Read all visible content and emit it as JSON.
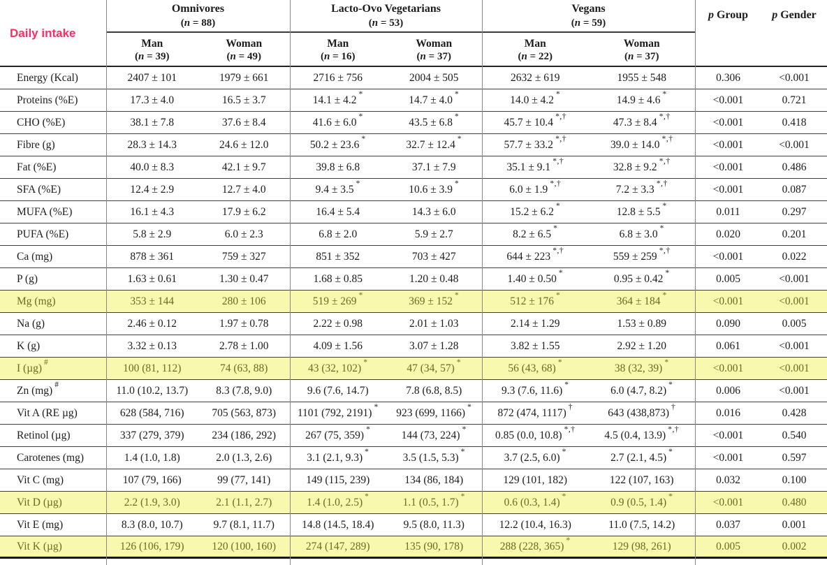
{
  "page": {
    "corner_label": "Daily intake",
    "groups": [
      {
        "name": "Omnivores",
        "n_label": "(n = 88)",
        "subs": [
          {
            "name": "Man",
            "n_label": "(n = 39)"
          },
          {
            "name": "Woman",
            "n_label": "(n = 49)"
          }
        ]
      },
      {
        "name": "Lacto-Ovo Vegetarians",
        "n_label": "(n = 53)",
        "subs": [
          {
            "name": "Man",
            "n_label": "(n = 16)"
          },
          {
            "name": "Woman",
            "n_label": "(n = 37)"
          }
        ]
      },
      {
        "name": "Vegans",
        "n_label": "(n = 59)",
        "subs": [
          {
            "name": "Man",
            "n_label": "(n = 22)"
          },
          {
            "name": "Woman",
            "n_label": "(n = 37)"
          }
        ]
      }
    ],
    "p_headers": [
      {
        "label": "p Group"
      },
      {
        "label": "p Gender"
      }
    ],
    "rows": [
      {
        "label": "Energy (Kcal)",
        "label_sup": "",
        "highlight": false,
        "cells": [
          {
            "v": "2407 ± 101",
            "a": ""
          },
          {
            "v": "1979 ± 661",
            "a": ""
          },
          {
            "v": "2716 ± 756",
            "a": ""
          },
          {
            "v": "2004 ± 505",
            "a": ""
          },
          {
            "v": "2632 ± 619",
            "a": ""
          },
          {
            "v": "1955 ± 548",
            "a": ""
          }
        ],
        "p_group": "0.306",
        "p_gender": "<0.001"
      },
      {
        "label": "Proteins (%E)",
        "label_sup": "",
        "highlight": false,
        "cells": [
          {
            "v": "17.3 ± 4.0",
            "a": ""
          },
          {
            "v": "16.5 ± 3.7",
            "a": ""
          },
          {
            "v": "14.1 ± 4.2",
            "a": "*"
          },
          {
            "v": "14.7 ± 4.0",
            "a": "*"
          },
          {
            "v": "14.0 ± 4.2",
            "a": "*"
          },
          {
            "v": "14.9 ± 4.6",
            "a": "*"
          }
        ],
        "p_group": "<0.001",
        "p_gender": "0.721"
      },
      {
        "label": "CHO (%E)",
        "label_sup": "",
        "highlight": false,
        "cells": [
          {
            "v": "38.1 ± 7.8",
            "a": ""
          },
          {
            "v": "37.6 ± 8.4",
            "a": ""
          },
          {
            "v": "41.6 ± 6.0",
            "a": "*"
          },
          {
            "v": "43.5 ± 6.8",
            "a": "*"
          },
          {
            "v": "45.7 ± 10.4",
            "a": "*,†"
          },
          {
            "v": "47.3 ± 8.4",
            "a": "*,†"
          }
        ],
        "p_group": "<0.001",
        "p_gender": "0.418"
      },
      {
        "label": "Fibre (g)",
        "label_sup": "",
        "highlight": false,
        "cells": [
          {
            "v": "28.3 ± 14.3",
            "a": ""
          },
          {
            "v": "24.6 ± 12.0",
            "a": ""
          },
          {
            "v": "50.2 ± 23.6",
            "a": "*"
          },
          {
            "v": "32.7 ± 12.4",
            "a": "*"
          },
          {
            "v": "57.7 ± 33.2",
            "a": "*,†"
          },
          {
            "v": "39.0 ± 14.0",
            "a": "*,†"
          }
        ],
        "p_group": "<0.001",
        "p_gender": "<0.001"
      },
      {
        "label": "Fat (%E)",
        "label_sup": "",
        "highlight": false,
        "cells": [
          {
            "v": "40.0 ± 8.3",
            "a": ""
          },
          {
            "v": "42.1 ± 9.7",
            "a": ""
          },
          {
            "v": "39.8 ± 6.8",
            "a": ""
          },
          {
            "v": "37.1 ± 7.9",
            "a": ""
          },
          {
            "v": "35.1 ± 9.1",
            "a": "*,†"
          },
          {
            "v": "32.8 ± 9.2",
            "a": "*,†"
          }
        ],
        "p_group": "<0.001",
        "p_gender": "0.486"
      },
      {
        "label": "SFA (%E)",
        "label_sup": "",
        "highlight": false,
        "cells": [
          {
            "v": "12.4 ± 2.9",
            "a": ""
          },
          {
            "v": "12.7 ± 4.0",
            "a": ""
          },
          {
            "v": "9.4 ± 3.5",
            "a": "*"
          },
          {
            "v": "10.6 ± 3.9",
            "a": "*"
          },
          {
            "v": "6.0 ± 1.9",
            "a": "*,†"
          },
          {
            "v": "7.2 ± 3.3",
            "a": "*,†"
          }
        ],
        "p_group": "<0.001",
        "p_gender": "0.087"
      },
      {
        "label": "MUFA (%E)",
        "label_sup": "",
        "highlight": false,
        "cells": [
          {
            "v": "16.1 ± 4.3",
            "a": ""
          },
          {
            "v": "17.9 ± 6.2",
            "a": ""
          },
          {
            "v": "16.4 ± 5.4",
            "a": ""
          },
          {
            "v": "14.3 ± 6.0",
            "a": ""
          },
          {
            "v": "15.2 ± 6.2",
            "a": "*"
          },
          {
            "v": "12.8 ± 5.5",
            "a": "*"
          }
        ],
        "p_group": "0.011",
        "p_gender": "0.297"
      },
      {
        "label": "PUFA (%E)",
        "label_sup": "",
        "highlight": false,
        "cells": [
          {
            "v": "5.8 ± 2.9",
            "a": ""
          },
          {
            "v": "6.0 ± 2.3",
            "a": ""
          },
          {
            "v": "6.8 ± 2.0",
            "a": ""
          },
          {
            "v": "5.9 ± 2.7",
            "a": ""
          },
          {
            "v": "8.2 ± 6.5",
            "a": "*"
          },
          {
            "v": "6.8 ± 3.0",
            "a": "*"
          }
        ],
        "p_group": "0.020",
        "p_gender": "0.201"
      },
      {
        "label": "Ca (mg)",
        "label_sup": "",
        "highlight": false,
        "cells": [
          {
            "v": "878 ± 361",
            "a": ""
          },
          {
            "v": "759 ± 327",
            "a": ""
          },
          {
            "v": "851 ± 352",
            "a": ""
          },
          {
            "v": "703 ± 427",
            "a": ""
          },
          {
            "v": "644 ± 223",
            "a": "*,†"
          },
          {
            "v": "559 ± 259",
            "a": "*,†"
          }
        ],
        "p_group": "<0.001",
        "p_gender": "0.022"
      },
      {
        "label": "P (g)",
        "label_sup": "",
        "highlight": false,
        "cells": [
          {
            "v": "1.63 ± 0.61",
            "a": ""
          },
          {
            "v": "1.30 ± 0.47",
            "a": ""
          },
          {
            "v": "1.68 ± 0.85",
            "a": ""
          },
          {
            "v": "1.20 ± 0.48",
            "a": ""
          },
          {
            "v": "1.40 ± 0.50",
            "a": "*"
          },
          {
            "v": "0.95 ± 0.42",
            "a": "*"
          }
        ],
        "p_group": "0.005",
        "p_gender": "<0.001"
      },
      {
        "label": "Mg (mg)",
        "label_sup": "",
        "highlight": true,
        "cells": [
          {
            "v": "353 ± 144",
            "a": ""
          },
          {
            "v": "280 ± 106",
            "a": ""
          },
          {
            "v": "519 ± 269",
            "a": "*"
          },
          {
            "v": "369 ± 152",
            "a": "*"
          },
          {
            "v": "512 ± 176",
            "a": "*"
          },
          {
            "v": "364 ± 184",
            "a": "*"
          }
        ],
        "p_group": "<0.001",
        "p_gender": "<0.001"
      },
      {
        "label": "Na (g)",
        "label_sup": "",
        "highlight": false,
        "cells": [
          {
            "v": "2.46 ± 0.12",
            "a": ""
          },
          {
            "v": "1.97 ± 0.78",
            "a": ""
          },
          {
            "v": "2.22 ± 0.98",
            "a": ""
          },
          {
            "v": "2.01 ± 1.03",
            "a": ""
          },
          {
            "v": "2.14 ± 1.29",
            "a": ""
          },
          {
            "v": "1.53 ± 0.89",
            "a": ""
          }
        ],
        "p_group": "0.090",
        "p_gender": "0.005"
      },
      {
        "label": "K (g)",
        "label_sup": "",
        "highlight": false,
        "cells": [
          {
            "v": "3.32 ± 0.13",
            "a": ""
          },
          {
            "v": "2.78 ± 1.00",
            "a": ""
          },
          {
            "v": "4.09 ± 1.56",
            "a": ""
          },
          {
            "v": "3.07 ± 1.28",
            "a": ""
          },
          {
            "v": "3.82 ± 1.55",
            "a": ""
          },
          {
            "v": "2.92 ± 1.20",
            "a": ""
          }
        ],
        "p_group": "0.061",
        "p_gender": "<0.001"
      },
      {
        "label": "I (µg)",
        "label_sup": "#",
        "highlight": true,
        "cells": [
          {
            "v": "100 (81, 112)",
            "a": ""
          },
          {
            "v": "74 (63, 88)",
            "a": ""
          },
          {
            "v": "43 (32, 102)",
            "a": "*"
          },
          {
            "v": "47 (34, 57)",
            "a": "*"
          },
          {
            "v": "56 (43, 68)",
            "a": "*"
          },
          {
            "v": "38 (32, 39)",
            "a": "*"
          }
        ],
        "p_group": "<0.001",
        "p_gender": "<0.001"
      },
      {
        "label": "Zn (mg)",
        "label_sup": "#",
        "highlight": false,
        "cells": [
          {
            "v": "11.0 (10.2, 13.7)",
            "a": ""
          },
          {
            "v": "8.3 (7.8, 9.0)",
            "a": ""
          },
          {
            "v": "9.6 (7.6, 14.7)",
            "a": ""
          },
          {
            "v": "7.8 (6.8, 8.5)",
            "a": ""
          },
          {
            "v": "9.3 (7.6, 11.6)",
            "a": "*"
          },
          {
            "v": "6.0 (4.7, 8.2)",
            "a": "*"
          }
        ],
        "p_group": "0.006",
        "p_gender": "<0.001"
      },
      {
        "label": "Vit A (RE µg)",
        "label_sup": "",
        "highlight": false,
        "cells": [
          {
            "v": "628 (584, 716)",
            "a": ""
          },
          {
            "v": "705 (563, 873)",
            "a": ""
          },
          {
            "v": "1101 (792, 2191)",
            "a": "*"
          },
          {
            "v": "923 (699, 1166)",
            "a": "*"
          },
          {
            "v": "872 (474, 1117)",
            "a": "†"
          },
          {
            "v": "643 (438,873)",
            "a": "†"
          }
        ],
        "p_group": "0.016",
        "p_gender": "0.428"
      },
      {
        "label": "Retinol (µg)",
        "label_sup": "",
        "highlight": false,
        "cells": [
          {
            "v": "337 (279, 379)",
            "a": ""
          },
          {
            "v": "234 (186, 292)",
            "a": ""
          },
          {
            "v": "267 (75, 359)",
            "a": "*"
          },
          {
            "v": "144 (73, 224)",
            "a": "*"
          },
          {
            "v": "0.85 (0.0, 10.8)",
            "a": "*,†"
          },
          {
            "v": "4.5 (0.4, 13.9)",
            "a": "*,†"
          }
        ],
        "p_group": "<0.001",
        "p_gender": "0.540"
      },
      {
        "label": "Carotenes (mg)",
        "label_sup": "",
        "highlight": false,
        "cells": [
          {
            "v": "1.4 (1.0, 1.8)",
            "a": ""
          },
          {
            "v": "2.0 (1.3, 2.6)",
            "a": ""
          },
          {
            "v": "3.1 (2.1, 9.3)",
            "a": "*"
          },
          {
            "v": "3.5 (1.5, 5.3)",
            "a": "*"
          },
          {
            "v": "3.7 (2.5, 6.0)",
            "a": "*"
          },
          {
            "v": "2.7 (2.1, 4.5)",
            "a": "*"
          }
        ],
        "p_group": "<0.001",
        "p_gender": "0.597"
      },
      {
        "label": "Vit C (mg)",
        "label_sup": "",
        "highlight": false,
        "cells": [
          {
            "v": "107 (79, 166)",
            "a": ""
          },
          {
            "v": "99 (77, 141)",
            "a": ""
          },
          {
            "v": "149 (115, 239)",
            "a": ""
          },
          {
            "v": "134 (86, 184)",
            "a": ""
          },
          {
            "v": "129 (101, 182)",
            "a": ""
          },
          {
            "v": "122 (107, 163)",
            "a": ""
          }
        ],
        "p_group": "0.032",
        "p_gender": "0.100"
      },
      {
        "label": "Vit D (µg)",
        "label_sup": "",
        "highlight": true,
        "cells": [
          {
            "v": "2.2 (1.9, 3.0)",
            "a": ""
          },
          {
            "v": "2.1 (1.1, 2.7)",
            "a": ""
          },
          {
            "v": "1.4 (1.0, 2.5)",
            "a": "*"
          },
          {
            "v": "1.1 (0.5, 1.7)",
            "a": "*"
          },
          {
            "v": "0.6 (0.3, 1.4)",
            "a": "*"
          },
          {
            "v": "0.9 (0.5, 1.4)",
            "a": "*"
          }
        ],
        "p_group": "<0.001",
        "p_gender": "0.480"
      },
      {
        "label": "Vit E (mg)",
        "label_sup": "",
        "highlight": false,
        "cells": [
          {
            "v": "8.3 (8.0, 10.7)",
            "a": ""
          },
          {
            "v": "9.7 (8.1, 11.7)",
            "a": ""
          },
          {
            "v": "14.8 (14.5, 18.4)",
            "a": ""
          },
          {
            "v": "9.5 (8.0, 11.3)",
            "a": ""
          },
          {
            "v": "12.2 (10.4, 16.3)",
            "a": ""
          },
          {
            "v": "11.0 (7.5, 14.2)",
            "a": ""
          }
        ],
        "p_group": "0.037",
        "p_gender": "0.001"
      },
      {
        "label": "Vit K (µg)",
        "label_sup": "",
        "highlight": true,
        "cells": [
          {
            "v": "126 (106, 179)",
            "a": ""
          },
          {
            "v": "120 (100, 160)",
            "a": ""
          },
          {
            "v": "274 (147, 289)",
            "a": ""
          },
          {
            "v": "135 (90, 178)",
            "a": ""
          },
          {
            "v": "288 (228, 365)",
            "a": "*"
          },
          {
            "v": "129 (98, 261)",
            "a": ""
          }
        ],
        "p_group": "0.005",
        "p_gender": "0.002"
      }
    ],
    "colors": {
      "accent_pink": "#fb2e63",
      "highlight_bg": "#f8f8af",
      "highlight_text": "#6b6b23"
    }
  }
}
